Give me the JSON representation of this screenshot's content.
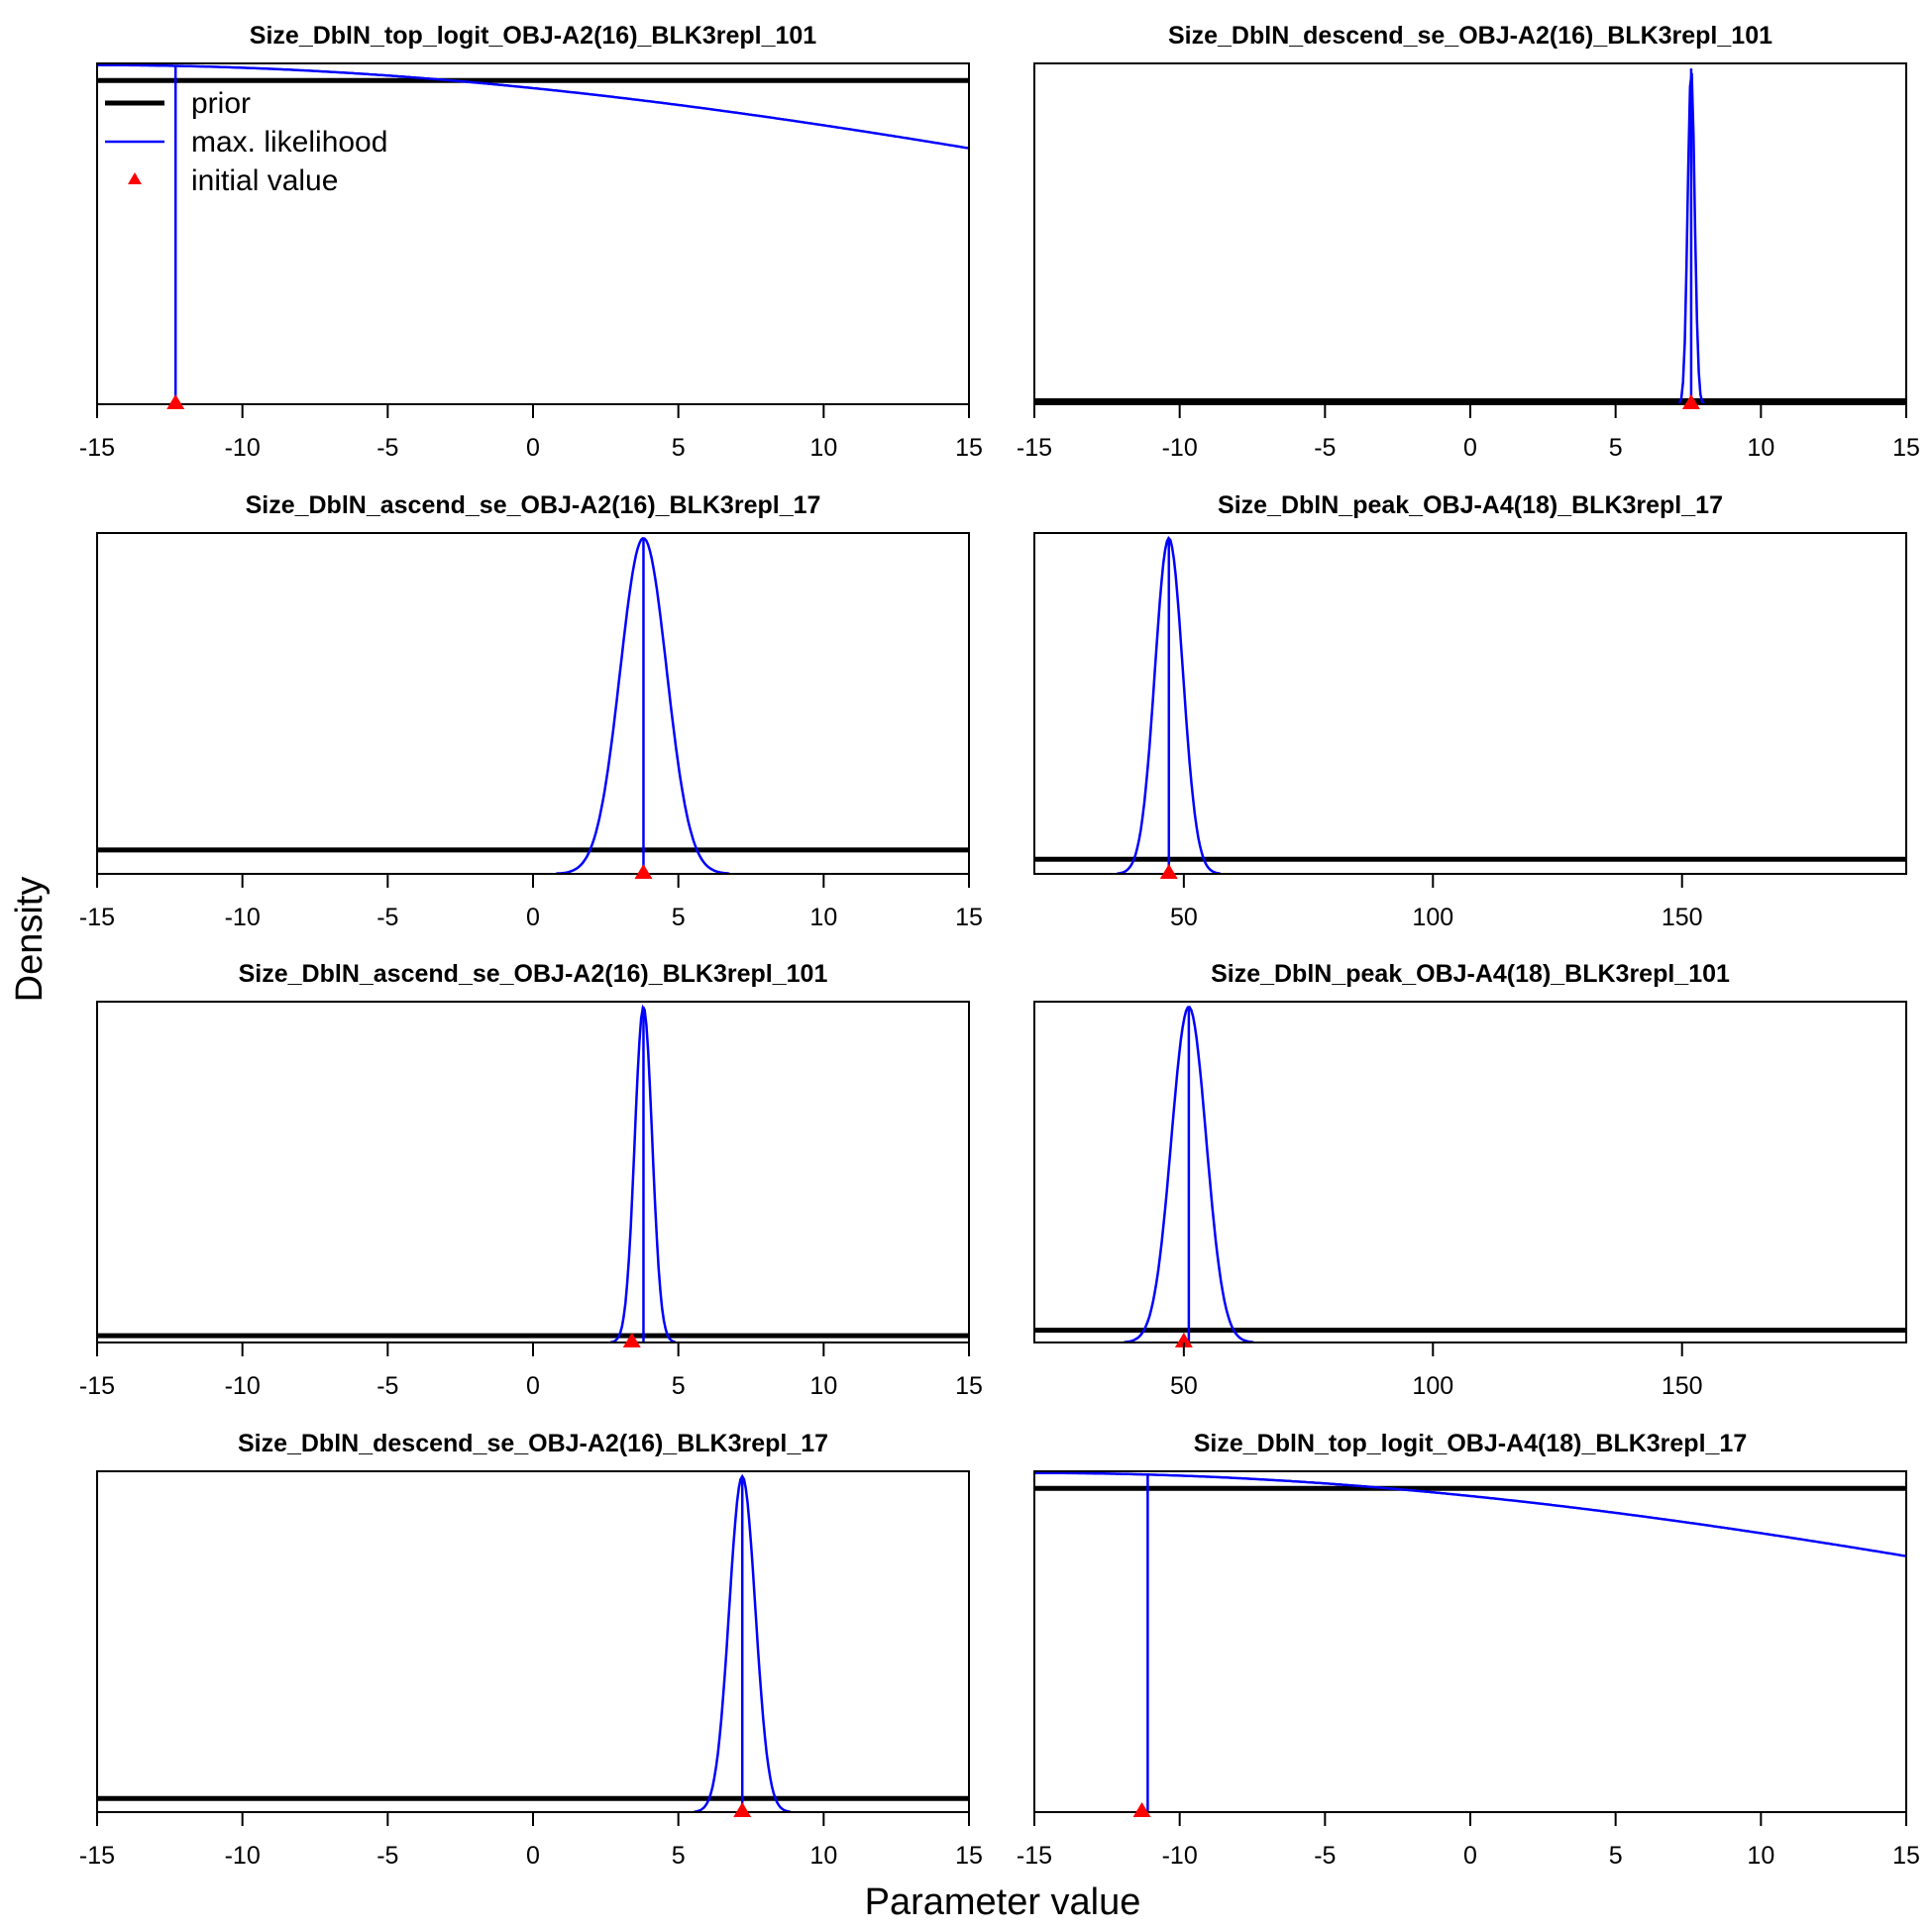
{
  "figure": {
    "xlabel": "Parameter value",
    "ylabel": "Density",
    "legend": {
      "placement": "top-left of first panel",
      "items": [
        {
          "label": "prior",
          "kind": "prior"
        },
        {
          "label": "max. likelihood",
          "kind": "mle"
        },
        {
          "label": "initial value",
          "kind": "init"
        }
      ]
    },
    "colors": {
      "prior": "#000000",
      "mle": "#0000ff",
      "init": "#ff0000"
    }
  },
  "chart_data": [
    {
      "type": "line",
      "title": "Size_DblN_top_logit_OBJ-A2(16)_BLK3repl_101",
      "xlim": [
        -15,
        15
      ],
      "xticks": [
        -15,
        -10,
        -5,
        0,
        5,
        10,
        15
      ],
      "prior_level": 0.95,
      "curve": {
        "shape": "broad",
        "center": -15,
        "sd": 40
      },
      "mle": -12.3,
      "initial": -12.3
    },
    {
      "type": "line",
      "title": "Size_DblN_descend_se_OBJ-A2(16)_BLK3repl_101",
      "xlim": [
        -15,
        15
      ],
      "xticks": [
        -15,
        -10,
        -5,
        0,
        5,
        10,
        15
      ],
      "prior_level": 0.01,
      "curve": {
        "shape": "normal",
        "center": 7.6,
        "sd": 0.12
      },
      "mle": 7.6,
      "initial": 7.6
    },
    {
      "type": "line",
      "title": "Size_DblN_ascend_se_OBJ-A2(16)_BLK3repl_17",
      "xlim": [
        -15,
        15
      ],
      "xticks": [
        -15,
        -10,
        -5,
        0,
        5,
        10,
        15
      ],
      "prior_level": 0.07,
      "curve": {
        "shape": "normal",
        "center": 3.8,
        "sd": 0.8
      },
      "mle": 3.8,
      "initial": 3.8
    },
    {
      "type": "line",
      "title": "Size_DblN_peak_OBJ-A4(18)_BLK3repl_17",
      "xlim": [
        20,
        195
      ],
      "xticks": [
        50,
        100,
        150
      ],
      "prior_level": 0.043,
      "curve": {
        "shape": "normal",
        "center": 47,
        "sd": 2.8
      },
      "mle": 47,
      "initial": 47
    },
    {
      "type": "line",
      "title": "Size_DblN_ascend_se_OBJ-A2(16)_BLK3repl_101",
      "xlim": [
        -15,
        15
      ],
      "xticks": [
        -15,
        -10,
        -5,
        0,
        5,
        10,
        15
      ],
      "prior_level": 0.02,
      "curve": {
        "shape": "normal",
        "center": 3.8,
        "sd": 0.3
      },
      "mle": 3.8,
      "initial": 3.4
    },
    {
      "type": "line",
      "title": "Size_DblN_peak_OBJ-A4(18)_BLK3repl_101",
      "xlim": [
        20,
        195
      ],
      "xticks": [
        50,
        100,
        150
      ],
      "prior_level": 0.036,
      "curve": {
        "shape": "normal",
        "center": 51,
        "sd": 3.5
      },
      "mle": 51,
      "initial": 50
    },
    {
      "type": "line",
      "title": "Size_DblN_descend_se_OBJ-A2(16)_BLK3repl_17",
      "xlim": [
        -15,
        15
      ],
      "xticks": [
        -15,
        -10,
        -5,
        0,
        5,
        10,
        15
      ],
      "prior_level": 0.04,
      "curve": {
        "shape": "normal",
        "center": 7.2,
        "sd": 0.45
      },
      "mle": 7.2,
      "initial": 7.2
    },
    {
      "type": "line",
      "title": "Size_DblN_top_logit_OBJ-A4(18)_BLK3repl_17",
      "xlim": [
        -15,
        15
      ],
      "xticks": [
        -15,
        -10,
        -5,
        0,
        5,
        10,
        15
      ],
      "prior_level": 0.95,
      "curve": {
        "shape": "broad",
        "center": -15,
        "sd": 40
      },
      "mle": -11.1,
      "initial": -11.3
    }
  ]
}
